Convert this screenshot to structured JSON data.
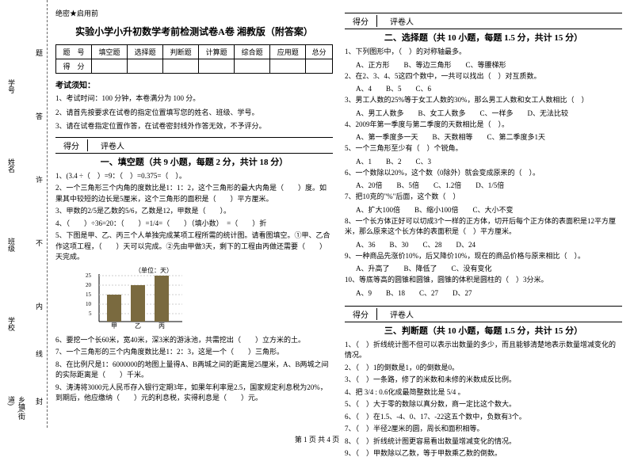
{
  "binding": {
    "labels": [
      "乡镇(街道)",
      "学校",
      "班级",
      "姓名",
      "学号"
    ],
    "vline": [
      "封",
      "线",
      "内",
      "不",
      "许",
      "答",
      "题"
    ]
  },
  "secret": "绝密★启用前",
  "title": "实验小学小升初数学考前检测试卷A卷 湘教版（附答案）",
  "gridHeaders": [
    "题　号",
    "填空题",
    "选择题",
    "判断题",
    "计算题",
    "综合题",
    "应用题",
    "总分"
  ],
  "gridRow2": "得　分",
  "noticeTitle": "考试须知：",
  "notices": [
    "1、考试时间：100 分钟，本卷满分为 100 分。",
    "2、请首先按要求在试卷的指定位置填写您的姓名、班级、学号。",
    "3、请在试卷指定位置作答，在试卷密封线外作答无效，不予评分。"
  ],
  "score": {
    "l1": "得分",
    "l2": "评卷人"
  },
  "sec1": {
    "title": "一、填空题（共 9 小题，每题 2 分，共计 18 分）",
    "q": [
      "1、(3.4 ÷（　）=9：（　）=0.375=（　）。",
      "2、一个三角形三个内角的度数比是1：1：2，这个三角形的最大内角是（　　）度。如果其中较短的边长是5厘米，这个三角形的面积是（　　）平方厘米。",
      "3、甲数的2/5是乙数的5/6，乙数是12，甲数是（　　）。",
      "4、（　　）÷36=20：（　　）=1/4=（　　）（填小数）　=（　　）折",
      "5、下图是甲、乙、丙三个人单独完成某项工程所需的统计图。请看图填空。①甲、乙合作这项工程，（　　）天可以完成。②先由甲做3天，剩下的工程由丙做还需要（　　）天完成。"
    ],
    "chart": {
      "ytitle": "（单位：天）",
      "ymax": 25,
      "yticks": [
        5,
        10,
        15,
        20,
        25
      ],
      "bars": [
        {
          "label": "甲",
          "value": 15,
          "color": "#7a6a3f"
        },
        {
          "label": "乙",
          "value": 20,
          "color": "#7a6a3f"
        },
        {
          "label": "丙",
          "value": 25,
          "color": "#7a6a3f"
        }
      ]
    },
    "q2": [
      "6、要挖一个长60米，宽40米，深3米的游泳池，共需挖出（　　）立方米的土。",
      "7、一个三角形的三个内角度数比是1：2：3，这是一个（　　）三角形。",
      "8、在比例尺是1：6000000的地图上量得A、B两城之间的距离是25厘米，A、B两城之间的实际距离是（　　）千米。",
      "9、涛涛将3000元人民币存入银行定期3年，如果年利率是2.5，国家规定利息税为20%，到期后，他应缴纳（　　）元的利息税，实得利息是（　　）元。"
    ]
  },
  "sec2": {
    "title": "二、选择题（共 10 小题，每题 1.5 分，共计 15 分）",
    "q": [
      {
        "t": "1、下列图形中，（　）的对称轴最多。",
        "o": [
          "A、正方形",
          "B、等边三角形",
          "C、等腰梯形"
        ]
      },
      {
        "t": "2、在2、3、4、5这四个数中，一共可以找出（　）对互质数。",
        "o": [
          "A、4",
          "B、5",
          "C、6"
        ]
      },
      {
        "t": "3、男工人数的25%等于女工人数的30%，那么男工人数和女工人数相比（　）",
        "o": [
          "A、男工人数多",
          "B、女工人数多",
          "C、一样多",
          "D、无法比较"
        ]
      },
      {
        "t": "4、2009年第一季度与第二季度的天数相比是（　）。",
        "o": [
          "A、第一季度多一天",
          "B、天数相等",
          "C、第二季度多1天"
        ]
      },
      {
        "t": "5、一个三角形至少有（　）个锐角。",
        "o": [
          "A、1",
          "B、2",
          "C、3"
        ]
      },
      {
        "t": "6、一个数除以20%，这个数（0除外）就会变成原来的（　）。",
        "o": [
          "A、20倍",
          "B、5倍",
          "C、1.2倍",
          "D、1/5倍"
        ]
      },
      {
        "t": "7、把10克的\"%\"后面，这个数（　）",
        "o": [
          "A、扩大100倍",
          "B、缩小100倍",
          "C、大小不变"
        ]
      },
      {
        "t": "8、一个长方体正好可以切成3个一样的正方体，切开后每个正方体的表面积是12平方厘米，那么原来这个长方体的表面积是（　）平方厘米。",
        "o": [
          "A、36",
          "B、30",
          "C、28",
          "D、24"
        ]
      },
      {
        "t": "9、一种商品先涨价10%，后又降价10%，现在的商品价格与原来相比（　）。",
        "o": [
          "A、升高了",
          "B、降低了",
          "C、没有变化"
        ]
      },
      {
        "t": "10、等底等高的圆锥和圆锥，圆锥的体积是圆柱的（　）3分米。",
        "o": [
          "A、9",
          "B、18",
          "C、27",
          "D、27"
        ]
      }
    ]
  },
  "sec3": {
    "title": "三、判断题（共 10 小题，每题 1.5 分，共计 15 分）",
    "q": [
      "1、（　）折线统计图不但可以表示出数量的多少，而且能够清楚地表示数量增减变化的情况。",
      "2、（　）1的倒数是1，0的倒数是0。",
      "3、（　）一条路，修了的米数和未修的米数成反比例。",
      "4、把 3/4 : 0.6化成最简整数比是 5/4 。",
      "5、（　）大于零的数除以真分数，商一定比这个数大。",
      "6、（　）在1.5、-4、0、17、-22这五个数中，负数有3个。",
      "7、（　）半径2厘米的圆，周长和面积相等。",
      "8、（　）折线统计图更容易看出数量增减变化的情况。",
      "9、（　）甲数除以乙数，等于甲数乘乙数的倒数。"
    ]
  },
  "footer": "第 1 页 共 4 页"
}
